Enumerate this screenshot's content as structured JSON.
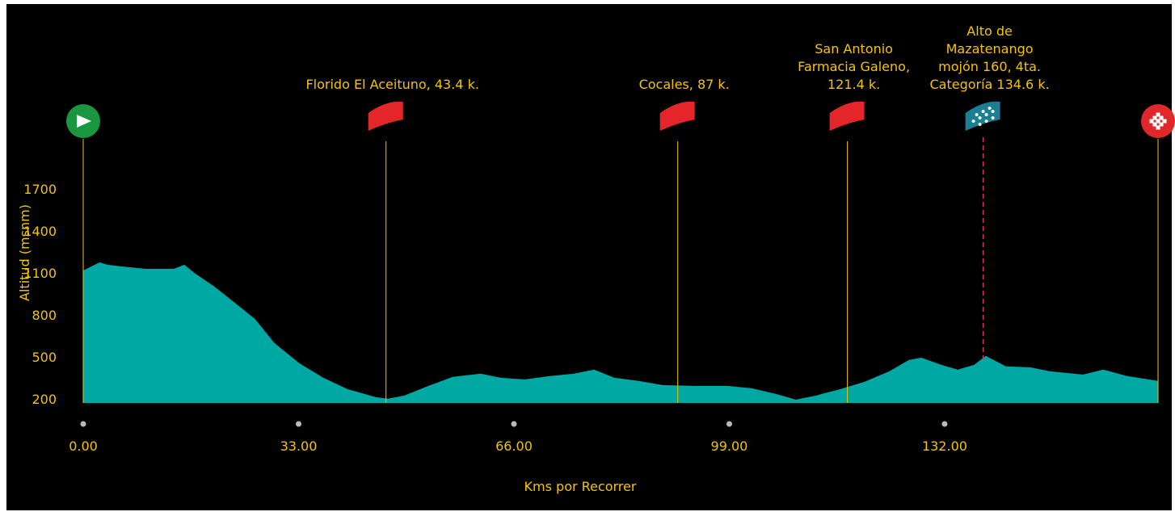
{
  "chart_data": {
    "type": "area",
    "y_label": "Altitud (msnm)",
    "x_label": "Kms por Recorrer",
    "color": "#00a8a3",
    "x": [
      0,
      2.5,
      3.7,
      5.8,
      9.5,
      13.9,
      15.5,
      17.0,
      20.1,
      23.2,
      26.3,
      29.3,
      33.1,
      36.8,
      40.5,
      44.8,
      46.7,
      49.2,
      52.9,
      56.6,
      60.9,
      64.0,
      67.7,
      71.4,
      75.2,
      78.3,
      81.4,
      85.1,
      88.8,
      93.7,
      98.7,
      102.4,
      106.1,
      109.2,
      112.3,
      116.0,
      119.7,
      123.5,
      126.5,
      128.4,
      131.5,
      134.0,
      136.5,
      138.3,
      141.4,
      145.1,
      148.2,
      153.2,
      156.3,
      160.0,
      164.7
    ],
    "values": [
      1117,
      1175,
      1158,
      1146,
      1129,
      1129,
      1158,
      1100,
      1002,
      887,
      771,
      598,
      454,
      350,
      269,
      212,
      200,
      223,
      292,
      356,
      379,
      350,
      338,
      362,
      379,
      408,
      350,
      327,
      298,
      292,
      292,
      275,
      235,
      194,
      223,
      269,
      321,
      396,
      477,
      494,
      442,
      408,
      442,
      506,
      431,
      425,
      396,
      373,
      408,
      362,
      327
    ],
    "xlim": [
      0,
      164.7
    ],
    "ylim": [
      170,
      2000
    ],
    "xticks": [
      {
        "value": 0,
        "label": "0.00"
      },
      {
        "value": 33,
        "label": "33.00"
      },
      {
        "value": 66,
        "label": "66.00"
      },
      {
        "value": 99,
        "label": "99.00"
      },
      {
        "value": 132,
        "label": "132.00"
      }
    ],
    "yticks": [
      200,
      500,
      800,
      1100,
      1400,
      1700
    ],
    "sprints": [
      {
        "label": [
          "Florido El Aceituno, 43.4 k."
        ],
        "x": 46.4
      },
      {
        "label": [
          "Cocales, 87 k."
        ],
        "x": 91.1
      },
      {
        "label": [
          "San Antonio",
          "Farmacia Galeno,",
          "121.4 k."
        ],
        "x": 117.1
      }
    ],
    "climbs": [
      {
        "label": [
          "Alto de",
          "Mazatenango",
          "mojón 160, 4ta.",
          "Categoría 134.6 k."
        ],
        "x": 137.9
      }
    ]
  }
}
